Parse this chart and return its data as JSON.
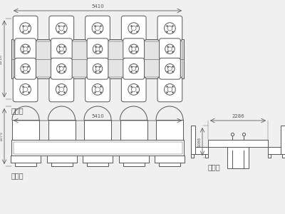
{
  "bg_color": "#f0f0f0",
  "line_color": "#555555",
  "title_top": "顶视图",
  "title_front": "正视图",
  "title_side": "侧视图",
  "dim_width": "5410",
  "dim_side_width": "2286",
  "dim_side_height": "1088",
  "dim_front_height": "1075"
}
